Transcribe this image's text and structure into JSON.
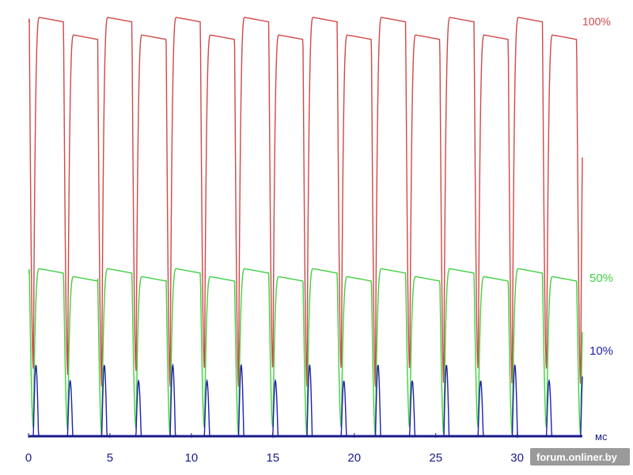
{
  "chart_data": {
    "type": "line",
    "title": "",
    "xlabel": "мс",
    "ylabel": "",
    "xlim": [
      0,
      34
    ],
    "ylim": [
      0,
      100
    ],
    "x_ticks": [
      "0",
      "5",
      "10",
      "15",
      "20",
      "25",
      "30"
    ],
    "grid": false,
    "legend": "none",
    "period_ms": 2.1,
    "series": [
      {
        "name": "100%",
        "color": "#d04848",
        "pwm_period_ms": 2.1,
        "peak": 100,
        "trough": 16,
        "duty": 0.88
      },
      {
        "name": "50%",
        "color": "#40d040",
        "pwm_period_ms": 2.1,
        "peak": 40,
        "trough": 2,
        "duty": 0.88
      },
      {
        "name": "10%",
        "color": "#2020b0",
        "pwm_period_ms": 2.1,
        "peak": 17,
        "trough": 0,
        "duty": 0.15
      }
    ]
  },
  "watermark": "forum.onliner.by"
}
